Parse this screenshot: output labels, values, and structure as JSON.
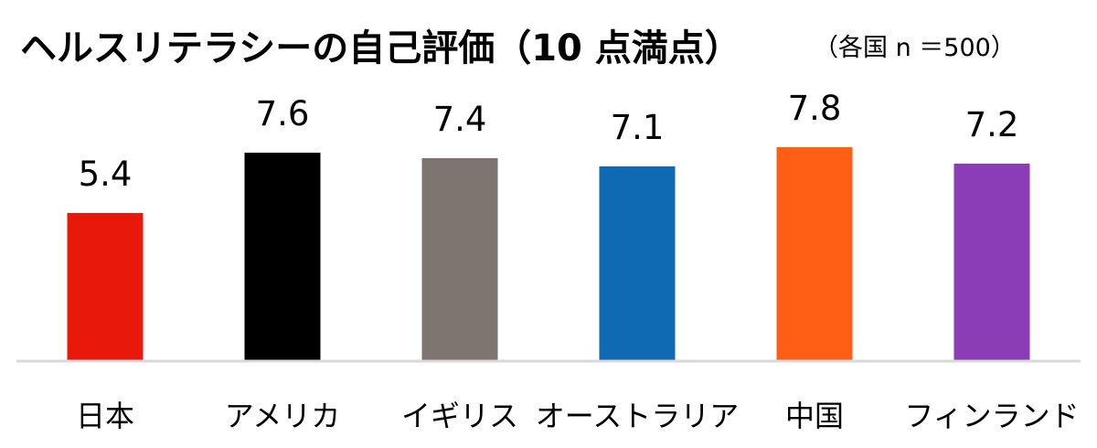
{
  "chart_data": {
    "type": "bar",
    "title": "ヘルスリテラシーの自己評価（10 点満点）",
    "subtitle": "（各国 n ＝500）",
    "xlabel": "",
    "ylabel": "",
    "categories": [
      "日本",
      "アメリカ",
      "イギリス",
      "オーストラリア",
      "中国",
      "フィンランド"
    ],
    "values": [
      5.4,
      7.6,
      7.4,
      7.1,
      7.8,
      7.2
    ],
    "data_labels": [
      "5.4",
      "7.6",
      "7.4",
      "7.1",
      "7.8",
      "7.2"
    ],
    "colors": [
      "#e8190a",
      "#000000",
      "#7f7570",
      "#106ab3",
      "#ff5e14",
      "#8b3db8"
    ],
    "ylim": [
      0,
      10
    ],
    "grid": false,
    "legend": "none"
  }
}
